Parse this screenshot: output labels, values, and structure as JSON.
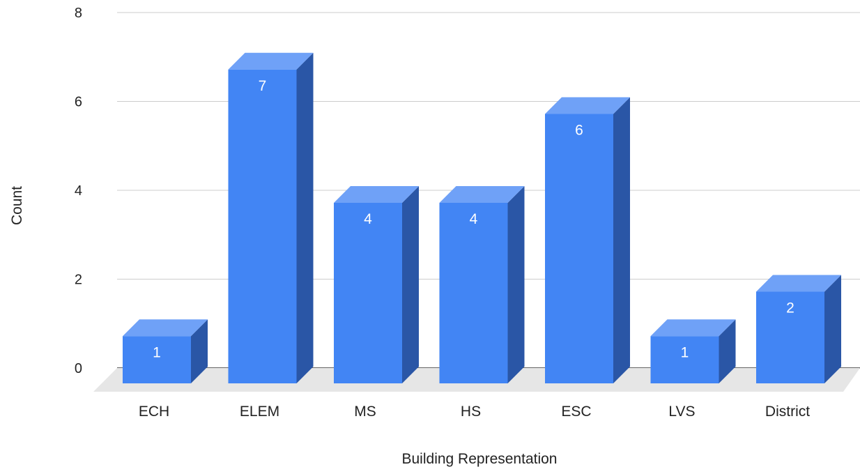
{
  "chart_data": {
    "type": "bar",
    "title": "",
    "xlabel": "Building Representation",
    "ylabel": "Count",
    "ylim": [
      0,
      8
    ],
    "yticks": [
      0,
      2,
      4,
      6,
      8
    ],
    "grid": true,
    "legend": "none",
    "style": "3d",
    "categories": [
      "ECH",
      "ELEM",
      "MS",
      "HS",
      "ESC",
      "LVS",
      "District"
    ],
    "values": [
      1,
      7,
      4,
      4,
      6,
      1,
      2
    ],
    "data_labels": [
      "1",
      "7",
      "4",
      "4",
      "6",
      "1",
      "2"
    ],
    "colors": {
      "bar_front": "#4285f4",
      "bar_top": "#6fa1f7",
      "bar_side": "#2a56a6",
      "floor": "#e6e6e6",
      "gridline": "#cccccc",
      "baseline": "#333333"
    }
  }
}
